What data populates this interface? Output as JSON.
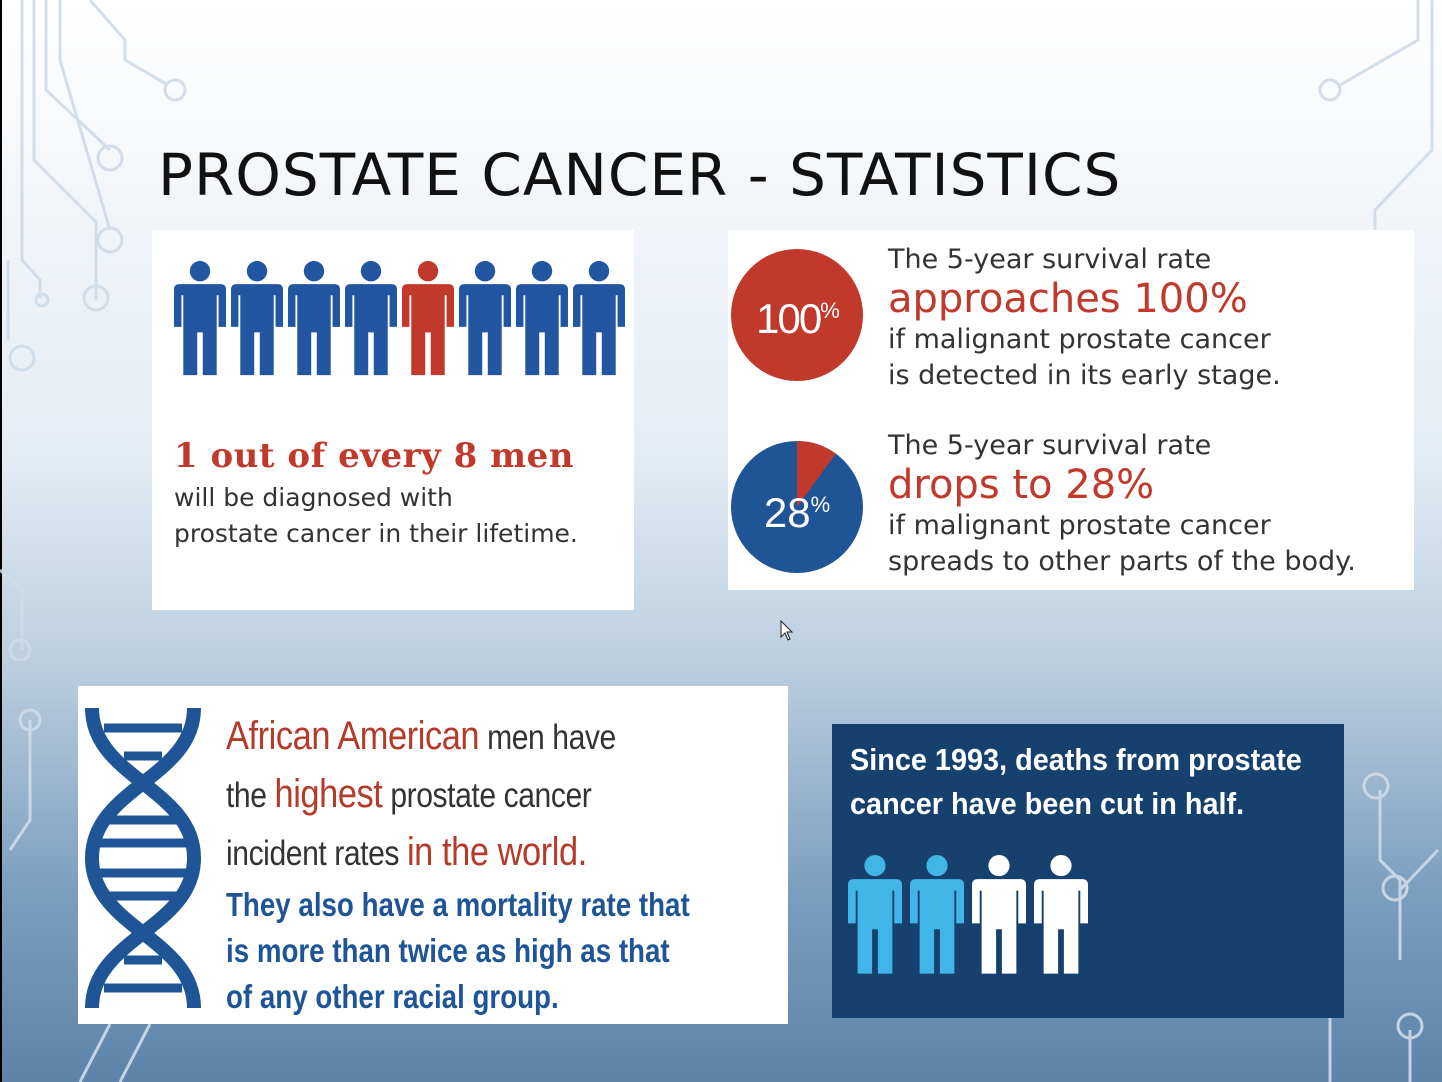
{
  "title": "PROSTATE CANCER - STATISTICS",
  "incidence": {
    "headline": "1 out of every 8 men",
    "body_line1": "will be diagnosed with",
    "body_line2": "prostate cancer in their lifetime.",
    "figures_total": 8,
    "figures_highlighted": 1,
    "figure_color": "#2356a1",
    "highlight_color": "#c0392b"
  },
  "survival": [
    {
      "pie_value": "100",
      "pie_unit": "%",
      "pie_fraction": 1.0,
      "lead": "The 5-year survival rate",
      "big": "approaches 100%",
      "tail1": "if malignant prostate cancer",
      "tail2": "is detected in its early stage."
    },
    {
      "pie_value": "28",
      "pie_unit": "%",
      "pie_fraction": 0.28,
      "lead": "The 5-year survival rate",
      "big": "drops to 28%",
      "tail1": "if malignant prostate cancer",
      "tail2": "spreads to other parts of the body."
    }
  ],
  "african_american": {
    "line1_red": "African American",
    "line1_rest": " men have",
    "line2_start": "the ",
    "line2_red": "highest",
    "line2_rest": " prostate cancer",
    "line3_start": "incident rates ",
    "line3_red": "in the world.",
    "blue1": "They also have a mortality rate that",
    "blue2": "is more than twice as high as that",
    "blue3": "of any other racial group.",
    "dna_icon": "dna-icon"
  },
  "deaths": {
    "line1": "Since 1993, deaths from prostate",
    "line2": "cancer have been cut in half.",
    "figures_total": 4,
    "figures_highlighted": 2,
    "highlight_color": "#41b6e6",
    "other_color": "#ffffff"
  },
  "colors": {
    "accent_red": "#c0392b",
    "accent_blue": "#1f5597",
    "panel_navy": "#16406e"
  }
}
